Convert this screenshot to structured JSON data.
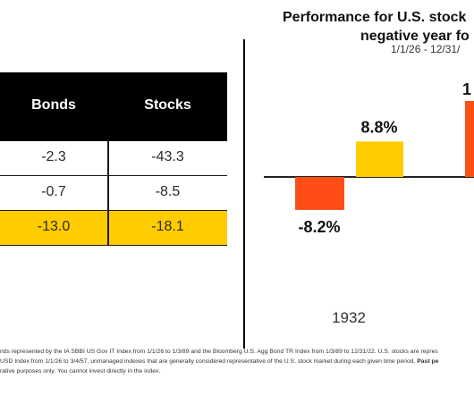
{
  "table": {
    "headers": [
      "Bonds",
      "Stocks"
    ],
    "rows": [
      [
        "-2.3",
        "-43.3"
      ],
      [
        "-0.7",
        "-8.5"
      ],
      [
        "-13.0",
        "-18.1"
      ]
    ],
    "highlight_color": "#ffcc00",
    "header_color": "#000000"
  },
  "chart_data": {
    "type": "bar",
    "title_line1": "Performance for U.S. stock",
    "title_line2": "negative year fo",
    "subtitle": "1/1/26 - 12/31/",
    "categories": [
      "1932"
    ],
    "series": [
      {
        "values": [
          -8.2
        ],
        "color": "#ff4f17"
      },
      {
        "values": [
          8.8
        ],
        "color": "#ffcc00"
      }
    ],
    "partial_label": "1",
    "labels": [
      "-8.2%",
      "8.8%"
    ],
    "ylim": [
      -12,
      20
    ]
  },
  "footnote": {
    "line1": "nds represented by the IA SBBI US Gov IT Index from 1/1/26 to 1/3/89 and the Bloomberg U.S. Agg Bond TR Index from 1/3/89 to 12/31/22. U.S. stocks are repres",
    "line2a": "USD Index from 1/1/26 to 3/4/57, unmanaged indexes that are generally considered representative of the U.S. stock market during each given time period.",
    "line2b": "Past pe",
    "line3": "rative purposes only. You cannot invest directly in the index."
  }
}
